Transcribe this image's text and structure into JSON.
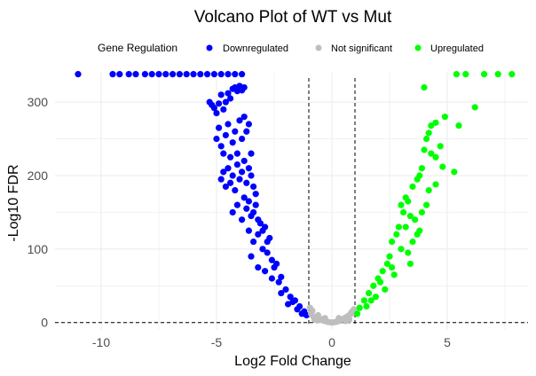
{
  "chart_data": {
    "type": "scatter",
    "title": "Volcano Plot of WT vs Mut",
    "xlabel": "Log2 Fold Change",
    "ylabel": "-Log10 FDR",
    "xlim": [
      -12,
      8.5
    ],
    "ylim": [
      -10,
      340
    ],
    "x_ticks": [
      -10,
      -5,
      0,
      5
    ],
    "y_ticks": [
      0,
      100,
      200,
      300
    ],
    "x_tick_labels": [
      "-10",
      "-5",
      "0",
      "5"
    ],
    "y_tick_labels": [
      "0",
      "100",
      "200",
      "300"
    ],
    "grid": true,
    "legend": {
      "position": "top",
      "title": "Gene Regulation",
      "entries": [
        {
          "label": "Downregulated",
          "color": "#0000ff"
        },
        {
          "label": "Not significant",
          "color": "#bebebe"
        },
        {
          "label": "Upregulated",
          "color": "#00ff00"
        }
      ]
    },
    "reference_lines": {
      "vertical_x": [
        -1,
        1
      ],
      "horizontal_y": [
        0
      ],
      "style": "dashed",
      "color": "#000000"
    },
    "series": [
      {
        "name": "Downregulated",
        "color": "#0000ff",
        "points": [
          [
            -11.0,
            338
          ],
          [
            -9.5,
            338
          ],
          [
            -9.2,
            338
          ],
          [
            -8.8,
            338
          ],
          [
            -8.5,
            338
          ],
          [
            -8.1,
            338
          ],
          [
            -7.8,
            338
          ],
          [
            -7.5,
            338
          ],
          [
            -7.2,
            338
          ],
          [
            -6.9,
            338
          ],
          [
            -6.6,
            338
          ],
          [
            -6.3,
            338
          ],
          [
            -6.0,
            338
          ],
          [
            -5.7,
            338
          ],
          [
            -5.4,
            338
          ],
          [
            -5.1,
            338
          ],
          [
            -4.8,
            338
          ],
          [
            -4.5,
            338
          ],
          [
            -4.2,
            338
          ],
          [
            -3.9,
            338
          ],
          [
            -5.3,
            300
          ],
          [
            -5.2,
            296
          ],
          [
            -5.1,
            292
          ],
          [
            -5.0,
            285
          ],
          [
            -4.9,
            298
          ],
          [
            -4.8,
            310
          ],
          [
            -4.7,
            290
          ],
          [
            -4.6,
            300
          ],
          [
            -4.5,
            312
          ],
          [
            -4.4,
            305
          ],
          [
            -4.3,
            318
          ],
          [
            -4.2,
            320
          ],
          [
            -4.1,
            315
          ],
          [
            -4.0,
            322
          ],
          [
            -3.9,
            316
          ],
          [
            -3.8,
            320
          ],
          [
            -5.0,
            250
          ],
          [
            -4.9,
            265
          ],
          [
            -4.8,
            240
          ],
          [
            -4.7,
            230
          ],
          [
            -4.6,
            255
          ],
          [
            -4.5,
            270
          ],
          [
            -4.4,
            225
          ],
          [
            -4.3,
            245
          ],
          [
            -4.2,
            260
          ],
          [
            -4.1,
            230
          ],
          [
            -4.0,
            275
          ],
          [
            -3.9,
            250
          ],
          [
            -3.8,
            280
          ],
          [
            -3.7,
            260
          ],
          [
            -3.6,
            270
          ],
          [
            -3.5,
            230
          ],
          [
            -4.8,
            195
          ],
          [
            -4.7,
            205
          ],
          [
            -4.6,
            185
          ],
          [
            -4.5,
            210
          ],
          [
            -4.4,
            190
          ],
          [
            -4.3,
            200
          ],
          [
            -4.2,
            180
          ],
          [
            -4.1,
            215
          ],
          [
            -4.0,
            195
          ],
          [
            -3.9,
            205
          ],
          [
            -3.8,
            220
          ],
          [
            -3.7,
            190
          ],
          [
            -3.6,
            210
          ],
          [
            -3.5,
            200
          ],
          [
            -3.4,
            185
          ],
          [
            -3.3,
            175
          ],
          [
            -4.3,
            150
          ],
          [
            -4.1,
            160
          ],
          [
            -3.9,
            140
          ],
          [
            -3.7,
            155
          ],
          [
            -3.5,
            145
          ],
          [
            -3.3,
            160
          ],
          [
            -3.1,
            135
          ],
          [
            -2.9,
            130
          ],
          [
            -2.7,
            115
          ],
          [
            -3.6,
            125
          ],
          [
            -3.4,
            110
          ],
          [
            -3.2,
            120
          ],
          [
            -3.0,
            100
          ],
          [
            -2.8,
            95
          ],
          [
            -2.6,
            85
          ],
          [
            -2.4,
            80
          ],
          [
            -3.5,
            90
          ],
          [
            -3.2,
            75
          ],
          [
            -2.9,
            70
          ],
          [
            -2.6,
            60
          ],
          [
            -2.3,
            55
          ],
          [
            -2.0,
            45
          ],
          [
            -1.8,
            35
          ],
          [
            -1.6,
            30
          ],
          [
            -1.4,
            22
          ],
          [
            -1.2,
            15
          ],
          [
            -1.1,
            10
          ],
          [
            -2.2,
            40
          ],
          [
            -1.9,
            25
          ],
          [
            -1.5,
            18
          ],
          [
            -3.8,
            170
          ],
          [
            -3.6,
            165
          ],
          [
            -3.4,
            150
          ],
          [
            -3.2,
            140
          ],
          [
            -3.0,
            125
          ],
          [
            -2.8,
            110
          ],
          [
            -2.5,
            75
          ],
          [
            -2.2,
            62
          ],
          [
            -1.7,
            28
          ],
          [
            -1.3,
            12
          ]
        ]
      },
      {
        "name": "Not significant",
        "color": "#bebebe",
        "points": [
          [
            -0.9,
            12
          ],
          [
            -0.8,
            8
          ],
          [
            -0.7,
            6
          ],
          [
            -0.6,
            10
          ],
          [
            -0.5,
            5
          ],
          [
            -0.4,
            3
          ],
          [
            -0.3,
            2
          ],
          [
            -0.2,
            1
          ],
          [
            -0.1,
            0.5
          ],
          [
            0.0,
            0
          ],
          [
            0.1,
            0.5
          ],
          [
            0.2,
            1
          ],
          [
            0.3,
            2
          ],
          [
            0.4,
            4
          ],
          [
            0.5,
            5
          ],
          [
            0.6,
            7
          ],
          [
            0.7,
            9
          ],
          [
            0.8,
            11
          ],
          [
            0.9,
            13
          ],
          [
            -0.95,
            20
          ],
          [
            -0.85,
            16
          ],
          [
            0.95,
            18
          ],
          [
            0.85,
            14
          ],
          [
            -0.6,
            3
          ],
          [
            0.6,
            2
          ],
          [
            -0.3,
            6
          ],
          [
            0.3,
            6
          ],
          [
            -0.75,
            4
          ],
          [
            0.75,
            4
          ]
        ]
      },
      {
        "name": "Upregulated",
        "color": "#00ff00",
        "points": [
          [
            5.4,
            338
          ],
          [
            5.8,
            338
          ],
          [
            6.6,
            338
          ],
          [
            7.2,
            338
          ],
          [
            7.8,
            338
          ],
          [
            4.0,
            320
          ],
          [
            6.2,
            293
          ],
          [
            4.9,
            280
          ],
          [
            4.5,
            272
          ],
          [
            4.3,
            268
          ],
          [
            4.2,
            258
          ],
          [
            4.1,
            250
          ],
          [
            5.5,
            268
          ],
          [
            4.7,
            240
          ],
          [
            5.3,
            205
          ],
          [
            4.8,
            212
          ],
          [
            4.5,
            225
          ],
          [
            4.3,
            230
          ],
          [
            4.0,
            235
          ],
          [
            3.9,
            210
          ],
          [
            3.8,
            200
          ],
          [
            3.7,
            195
          ],
          [
            4.5,
            188
          ],
          [
            4.2,
            180
          ],
          [
            3.5,
            185
          ],
          [
            3.3,
            165
          ],
          [
            3.2,
            170
          ],
          [
            3.0,
            160
          ],
          [
            3.1,
            150
          ],
          [
            3.4,
            145
          ],
          [
            3.6,
            140
          ],
          [
            2.9,
            130
          ],
          [
            2.8,
            120
          ],
          [
            2.6,
            110
          ],
          [
            3.0,
            100
          ],
          [
            3.3,
            95
          ],
          [
            2.5,
            90
          ],
          [
            2.4,
            80
          ],
          [
            2.2,
            70
          ],
          [
            2.7,
            65
          ],
          [
            2.0,
            60
          ],
          [
            1.8,
            50
          ],
          [
            1.6,
            40
          ],
          [
            1.4,
            30
          ],
          [
            1.2,
            20
          ],
          [
            1.1,
            12
          ],
          [
            2.3,
            45
          ],
          [
            1.9,
            35
          ],
          [
            1.5,
            22
          ],
          [
            3.7,
            120
          ],
          [
            3.5,
            110
          ],
          [
            3.4,
            80
          ],
          [
            3.2,
            130
          ],
          [
            3.8,
            125
          ],
          [
            4.1,
            160
          ],
          [
            3.9,
            150
          ],
          [
            2.6,
            75
          ],
          [
            2.1,
            55
          ],
          [
            1.7,
            30
          ]
        ]
      }
    ]
  }
}
